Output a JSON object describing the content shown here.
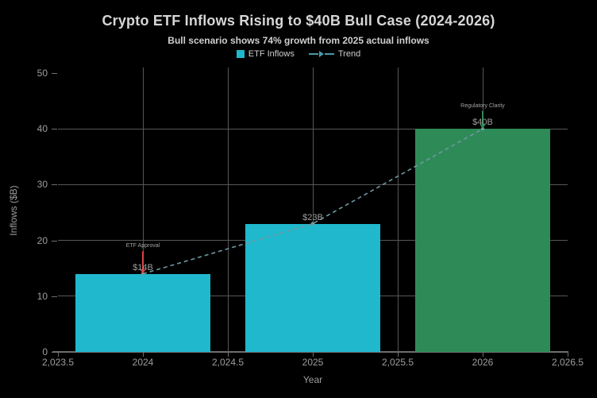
{
  "chart_data": {
    "type": "bar",
    "title": "Crypto ETF Inflows Rising to $40B Bull Case (2024-2026)",
    "subtitle": "Bull scenario shows 74% growth from 2025 actual inflows",
    "xlabel": "Year",
    "ylabel": "Inflows ($B)",
    "categories": [
      2024,
      2025,
      2026
    ],
    "series": [
      {
        "name": "ETF Inflows",
        "type": "bar",
        "values": [
          14,
          23,
          40
        ],
        "value_labels": [
          "$14B",
          "$23B",
          "$40B"
        ],
        "bar_colors": [
          "#1FB8CD",
          "#1FB8CD",
          "#2E8B57"
        ]
      },
      {
        "name": "Trend",
        "type": "dashed-line",
        "values": [
          14,
          23,
          40
        ],
        "color": "#6F98A1"
      }
    ],
    "legend": [
      {
        "label": "ETF Inflows",
        "swatch": "square",
        "color": "#1FB8CD"
      },
      {
        "label": "Trend",
        "swatch": "dashed-arrow-line",
        "color": "#4A99A8"
      }
    ],
    "xlim": [
      2023.5,
      2026.5
    ],
    "ylim": [
      0,
      51
    ],
    "x_ticks": [
      {
        "v": 2023.5,
        "label": "2,023.5"
      },
      {
        "v": 2024,
        "label": "2024"
      },
      {
        "v": 2024.5,
        "label": "2,024.5"
      },
      {
        "v": 2025,
        "label": "2025"
      },
      {
        "v": 2025.5,
        "label": "2,025.5"
      },
      {
        "v": 2026,
        "label": "2026"
      },
      {
        "v": 2026.5,
        "label": "2,026.5"
      }
    ],
    "y_ticks": [
      {
        "v": 0,
        "label": "0"
      },
      {
        "v": 10,
        "label": "10"
      },
      {
        "v": 20,
        "label": "20"
      },
      {
        "v": 30,
        "label": "30"
      },
      {
        "v": 40,
        "label": "40"
      },
      {
        "v": 50,
        "label": "50"
      }
    ],
    "y_gridlines": [
      10,
      20,
      30,
      40
    ],
    "x_gridlines": [
      2024,
      2024.5,
      2025,
      2025.5,
      2026
    ],
    "grid": true,
    "legend_position": "top-center",
    "annotations": [
      {
        "text": "ETF Approval",
        "x": 2024,
        "y": 14,
        "arrow_len": 23,
        "arrow_color": "#DE4343"
      },
      {
        "text": "Regulatory Clarity",
        "x": 2026,
        "y": 40,
        "arrow_len": 17,
        "arrow_color": "#2E8B57"
      }
    ],
    "colors": {
      "background": "#000000",
      "grid": "#575757",
      "axis_line": "#6E6E6E",
      "tick_label": "#9E9E9E",
      "title": "#D6D6D6",
      "subtitle": "#CFCFCF",
      "annotation_text": "#A3A3A3",
      "value_label": "#9E9E9E"
    }
  }
}
